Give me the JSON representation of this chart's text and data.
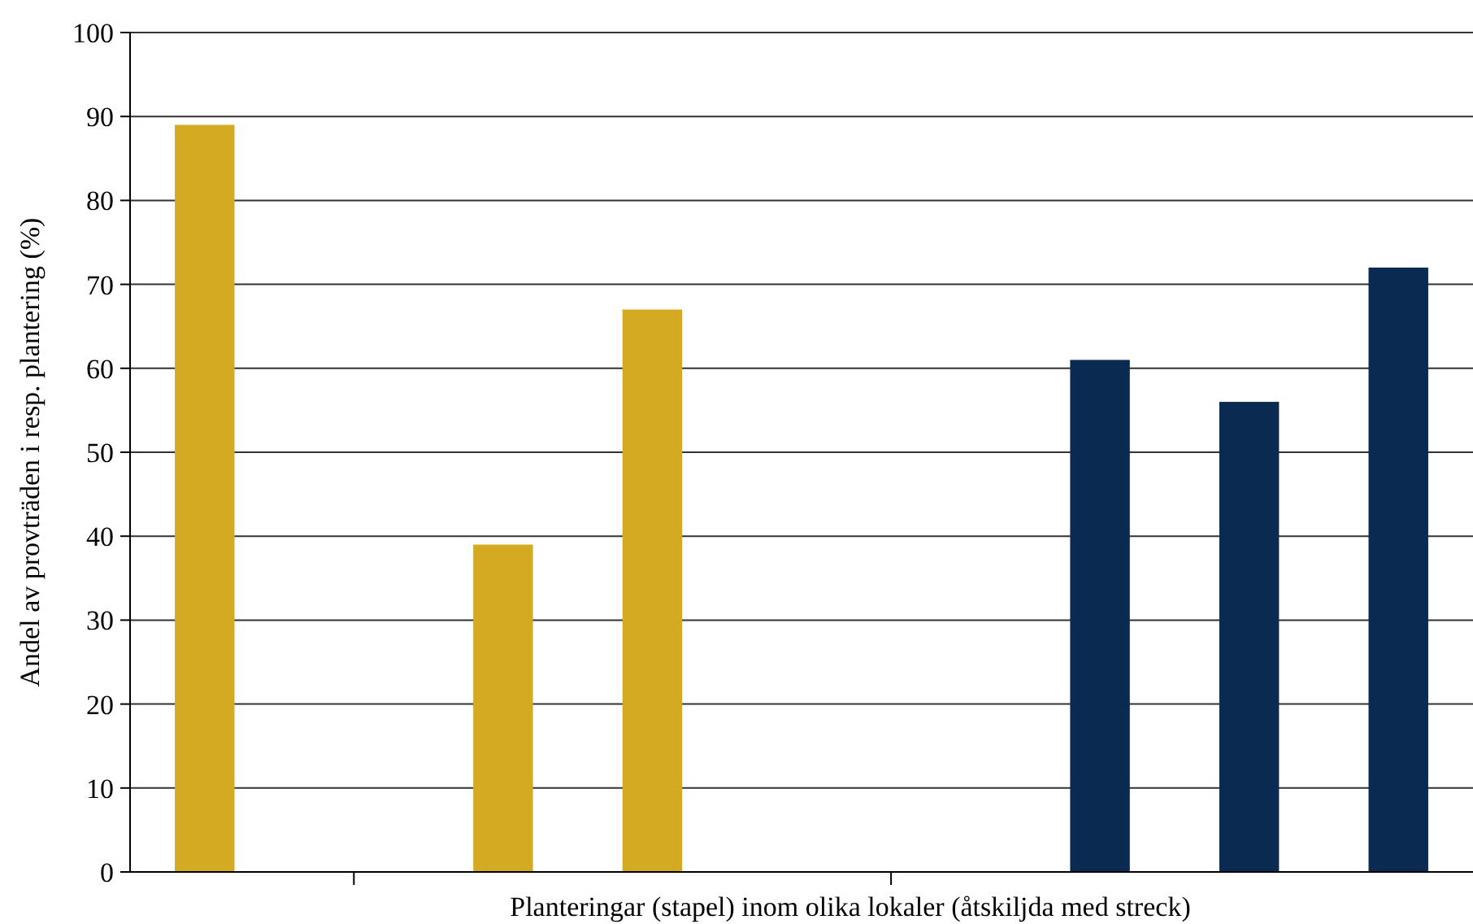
{
  "chart_data": {
    "type": "bar",
    "xlabel": "Planteringar (stapel) inom olika lokaler (åtskiljda med streck)",
    "ylabel": "Andel av provträden i resp. plantering (%)",
    "categories": [
      null,
      null,
      null,
      null,
      null,
      null,
      null,
      null,
      null
    ],
    "values": [
      89,
      null,
      39,
      67,
      null,
      null,
      61,
      56,
      72
    ],
    "colors": [
      "#d4aa22",
      null,
      "#d4aa22",
      "#d4aa22",
      null,
      null,
      "#0a2a52",
      "#0a2a52",
      "#0a2a52"
    ],
    "ylim": [
      0,
      100
    ],
    "yticks": [
      0,
      10,
      20,
      30,
      40,
      50,
      60,
      70,
      80,
      90,
      100
    ],
    "grid": "y"
  }
}
